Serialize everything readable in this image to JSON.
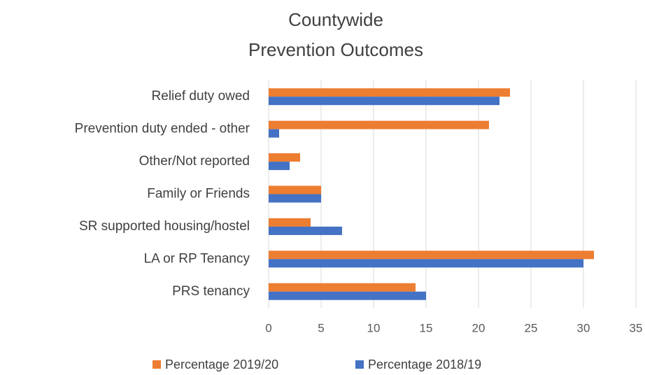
{
  "chart_data": {
    "type": "bar",
    "orientation": "horizontal",
    "title": [
      "Countywide",
      "Prevention Outcomes"
    ],
    "categories": [
      "Relief duty owed",
      "Prevention duty ended - other",
      "Other/Not reported",
      "Family or Friends",
      "SR supported housing/hostel",
      "LA or RP Tenancy",
      "PRS tenancy"
    ],
    "series": [
      {
        "name": "Percentage 2019/20",
        "color": "#ED7D31",
        "values": [
          23,
          21,
          3,
          5,
          4,
          31,
          14
        ]
      },
      {
        "name": "Percentage 2018/19",
        "color": "#4472C4",
        "values": [
          22,
          1,
          2,
          5,
          7,
          30,
          15
        ]
      }
    ],
    "xlim": [
      0,
      35
    ],
    "xticks": [
      0,
      5,
      10,
      15,
      20,
      25,
      30,
      35
    ],
    "grid": true,
    "legend": "bottom"
  }
}
